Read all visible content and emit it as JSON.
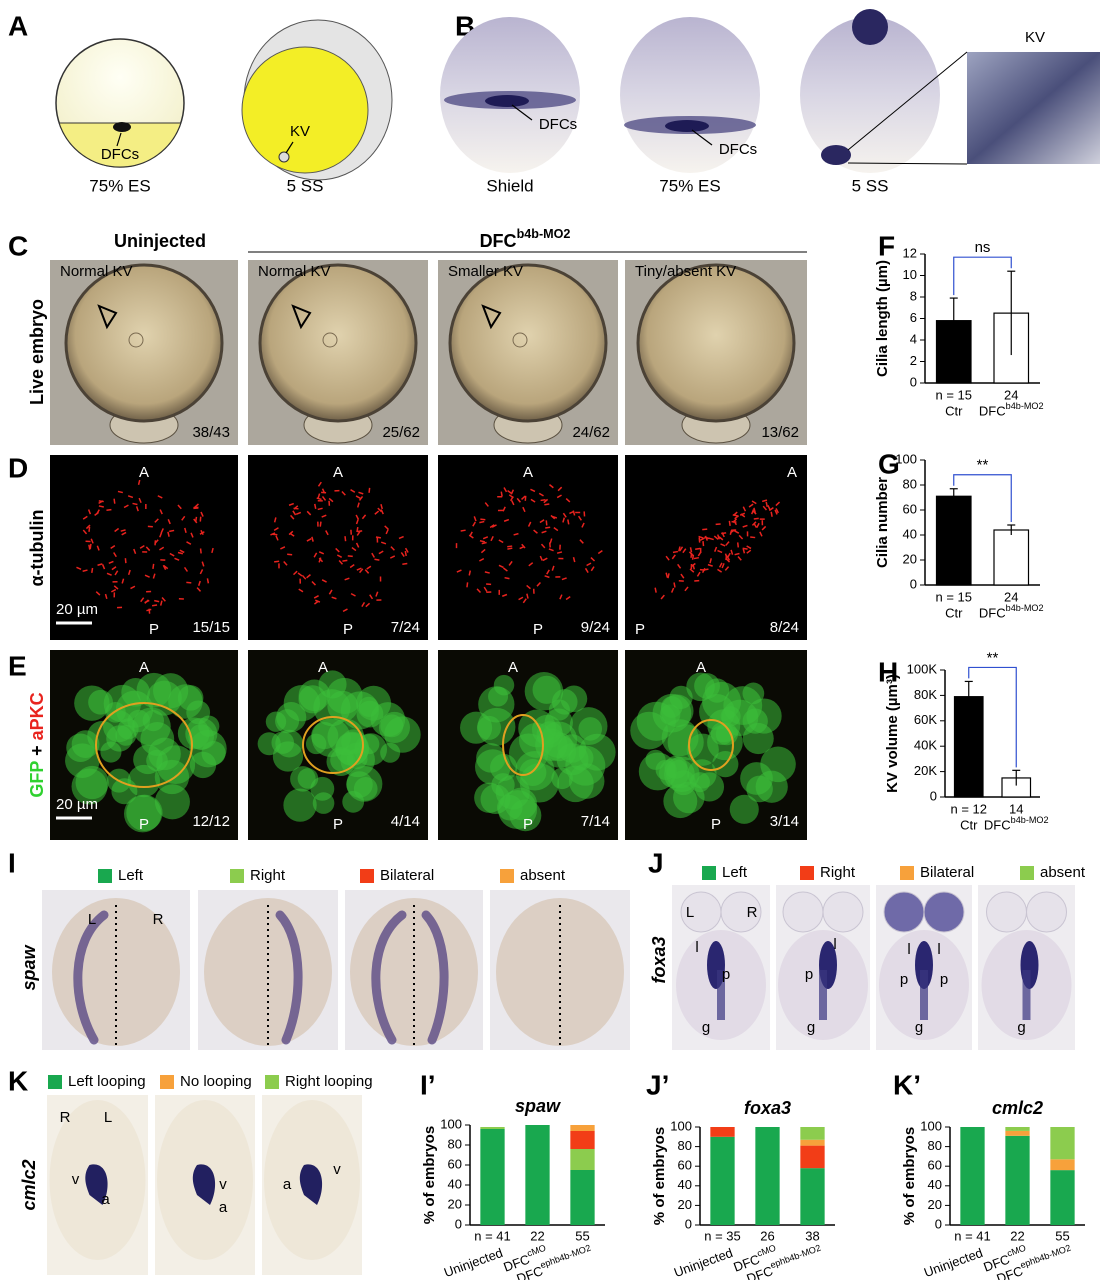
{
  "panel_letters": [
    "A",
    "B",
    "C",
    "D",
    "E",
    "F",
    "G",
    "H",
    "I",
    "J",
    "K",
    "I’",
    "J’",
    "K’"
  ],
  "panel_a": {
    "captions": [
      "75% ES",
      "5 SS"
    ],
    "labels": [
      "DFCs",
      "KV"
    ]
  },
  "panel_b": {
    "captions": [
      "Shield",
      "75% ES",
      "5 SS"
    ],
    "labels": [
      "DFCs",
      "DFCs"
    ],
    "inset": "KV"
  },
  "panel_c": {
    "row_label": "Live embryo",
    "group_uninjected": "Uninjected",
    "group_mo": "DFCb4b-MO2",
    "titles": [
      "Normal  KV",
      "Normal KV",
      "Smaller KV",
      "Tiny/absent KV"
    ],
    "counts": [
      "38/43",
      "25/62",
      "24/62",
      "13/62"
    ]
  },
  "panel_d": {
    "row_label": "α-tubulin",
    "scale_bar": "20 µm",
    "axis_labels": [
      "A",
      "P"
    ],
    "counts": [
      "15/15",
      "7/24",
      "9/24",
      "8/24"
    ]
  },
  "panel_e": {
    "row_label": [
      "GFP",
      "+",
      "aPKC"
    ],
    "scale_bar": "20 µm",
    "axis_labels": [
      "A",
      "P"
    ],
    "counts": [
      "12/12",
      "4/14",
      "7/14",
      "3/14"
    ]
  },
  "panel_i": {
    "gene": "spaw",
    "side_labels": [
      "L",
      "R"
    ]
  },
  "panel_j": {
    "gene": "foxa3",
    "side_labels": [
      "L",
      "R"
    ],
    "image_labels": [
      [
        "l",
        "p",
        "g"
      ],
      [
        "p",
        "l",
        "g"
      ],
      [
        "l",
        "l",
        "p",
        "p",
        "g"
      ],
      [
        "g"
      ]
    ]
  },
  "panel_k": {
    "gene": "cmlc2",
    "side_labels": [
      "R",
      "L"
    ],
    "image_labels": [
      [
        "v",
        "a"
      ],
      [
        "v",
        "a"
      ],
      [
        "a",
        "v"
      ]
    ]
  },
  "chart_data": [
    {
      "type": "bar",
      "ylabel": "Cilia length (µm)",
      "categories": [
        "Ctr",
        "DFCb4b-MO2"
      ],
      "n_labels": [
        "n = 15",
        "24"
      ],
      "values": [
        5.8,
        6.5
      ],
      "errors": [
        2.1,
        3.9
      ],
      "colors": [
        "#000000",
        "#ffffff"
      ],
      "ylim": [
        0,
        12
      ],
      "yticks": [
        0,
        2,
        4,
        6,
        8,
        10,
        12
      ],
      "annotation": "ns"
    },
    {
      "type": "bar",
      "ylabel": "Cilia number",
      "categories": [
        "Ctr",
        "DFCb4b-MO2"
      ],
      "n_labels": [
        "n = 15",
        "24"
      ],
      "values": [
        71,
        44
      ],
      "errors": [
        6,
        4
      ],
      "colors": [
        "#000000",
        "#ffffff"
      ],
      "ylim": [
        0,
        100
      ],
      "yticks": [
        0,
        20,
        40,
        60,
        80,
        100
      ],
      "annotation": "**"
    },
    {
      "type": "bar",
      "ylabel": "KV volume (µm³)",
      "categories": [
        "Ctr",
        "DFCb4b-MO2"
      ],
      "n_labels": [
        "n =  12",
        "14"
      ],
      "values": [
        79000,
        15000
      ],
      "errors": [
        12000,
        6000
      ],
      "colors": [
        "#000000",
        "#ffffff"
      ],
      "ylim": [
        0,
        100000
      ],
      "yticks": [
        0,
        {
          "value": 20000,
          "label": "20K"
        },
        {
          "value": 40000,
          "label": "40K"
        },
        {
          "value": 60000,
          "label": "60K"
        },
        {
          "value": 80000,
          "label": "80K"
        },
        {
          "value": 100000,
          "label": "100K"
        }
      ],
      "annotation": "**"
    },
    {
      "type": "stacked_bar",
      "title": "spaw",
      "ylabel": "% of embryos",
      "categories": [
        "Uninjected",
        "DFCcMO",
        "DFCephb4b-MO2"
      ],
      "n_labels": [
        "n = 41",
        "22",
        "55"
      ],
      "series": [
        {
          "name": "Left",
          "color": "#19a84f",
          "values": [
            96,
            100,
            55
          ]
        },
        {
          "name": "Right",
          "color": "#8ccc4e",
          "values": [
            2,
            0,
            21
          ]
        },
        {
          "name": "Bilateral",
          "color": "#f23d17",
          "values": [
            0,
            0,
            18
          ]
        },
        {
          "name": "absent",
          "color": "#f7a13b",
          "values": [
            0,
            0,
            6
          ]
        }
      ],
      "ylim": [
        0,
        100
      ],
      "yticks": [
        0,
        20,
        40,
        60,
        80,
        100
      ]
    },
    {
      "type": "stacked_bar",
      "title": "foxa3",
      "ylabel": "% of embryos",
      "categories": [
        "Uninjected",
        "DFCcMO",
        "DFCephb4b-MO2"
      ],
      "n_labels": [
        "n = 35",
        "26",
        "38"
      ],
      "series": [
        {
          "name": "Left",
          "color": "#19a84f",
          "values": [
            90,
            100,
            58
          ]
        },
        {
          "name": "Right",
          "color": "#f23d17",
          "values": [
            10,
            0,
            23
          ]
        },
        {
          "name": "Bilateral",
          "color": "#f7a13b",
          "values": [
            0,
            0,
            6
          ]
        },
        {
          "name": "absent",
          "color": "#8ccc4e",
          "values": [
            0,
            0,
            13
          ]
        }
      ],
      "ylim": [
        0,
        100
      ],
      "yticks": [
        0,
        20,
        40,
        60,
        80,
        100
      ]
    },
    {
      "type": "stacked_bar",
      "title": "cmlc2",
      "ylabel": "% of embryos",
      "categories": [
        "Uninjected",
        "DFCcMO",
        "DFCephb4b-MO2"
      ],
      "n_labels": [
        "n = 41",
        "22",
        "55"
      ],
      "series": [
        {
          "name": "Left looping",
          "color": "#19a84f",
          "values": [
            100,
            91,
            56
          ]
        },
        {
          "name": "No looping",
          "color": "#f7a13b",
          "values": [
            0,
            5,
            11
          ]
        },
        {
          "name": "Right looping",
          "color": "#8ccc4e",
          "values": [
            0,
            4,
            33
          ]
        }
      ],
      "ylim": [
        0,
        100
      ],
      "yticks": [
        0,
        20,
        40,
        60,
        80,
        100
      ]
    }
  ]
}
